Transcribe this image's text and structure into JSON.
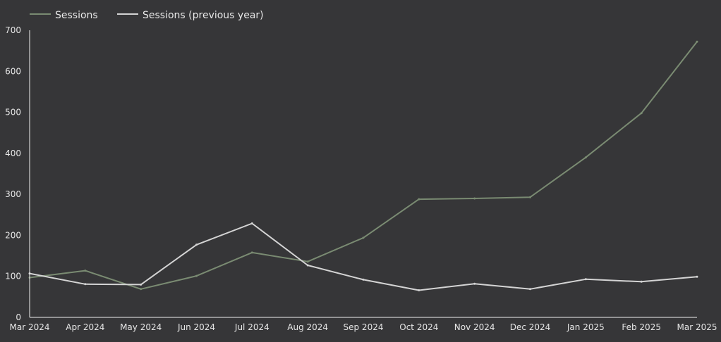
{
  "chart_data": {
    "type": "line",
    "categories": [
      "Mar 2024",
      "Apr 2024",
      "May 2024",
      "Jun 2024",
      "Jul 2024",
      "Aug 2024",
      "Sep 2024",
      "Oct 2024",
      "Nov 2024",
      "Dec 2024",
      "Jan 2025",
      "Feb 2025",
      "Mar 2025"
    ],
    "series": [
      {
        "name": "Sessions",
        "color": "#7a8b72",
        "values": [
          97,
          114,
          69,
          101,
          158,
          136,
          194,
          288,
          290,
          293,
          390,
          498,
          672
        ]
      },
      {
        "name": "Sessions (previous year)",
        "color": "#d4d4d4",
        "values": [
          107,
          81,
          80,
          177,
          229,
          127,
          92,
          66,
          82,
          69,
          93,
          87,
          99
        ]
      }
    ],
    "title": "",
    "xlabel": "",
    "ylabel": "",
    "ylim": [
      0,
      700
    ],
    "yticks": [
      0,
      100,
      200,
      300,
      400,
      500,
      600,
      700
    ],
    "grid": false,
    "legend": "top-left",
    "axis_color": "#f0f0f0",
    "background": "#363638"
  }
}
